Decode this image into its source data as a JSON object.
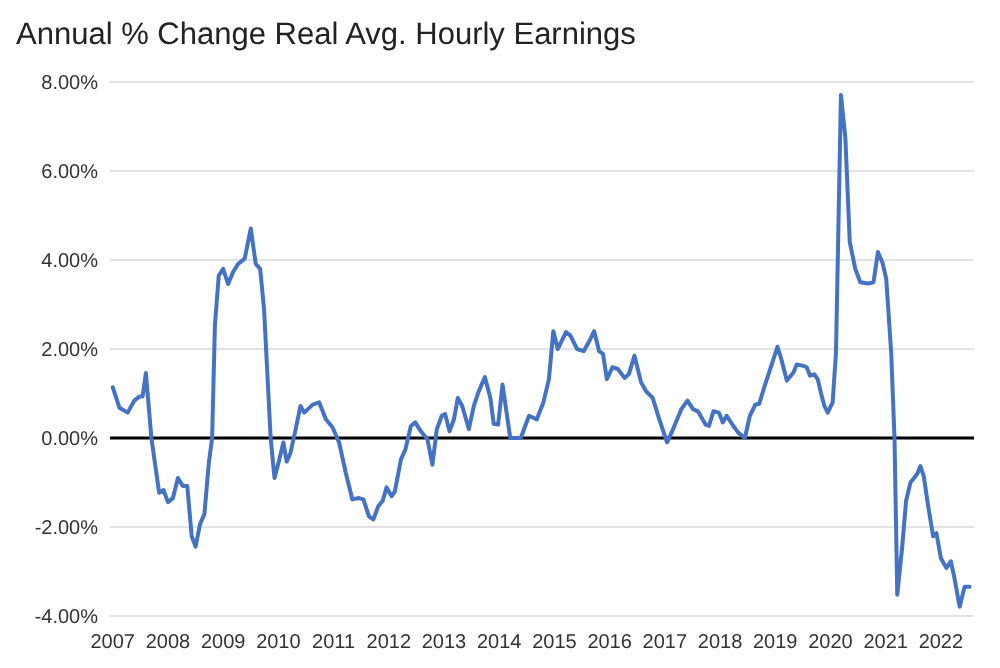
{
  "chart_data": {
    "type": "line",
    "title": "Annual % Change Real Avg. Hourly Earnings",
    "x": [
      2007.0,
      2007.12,
      2007.27,
      2007.39,
      2007.48,
      2007.54,
      2007.6,
      2007.7,
      2007.84,
      2007.92,
      2008.0,
      2008.09,
      2008.18,
      2008.27,
      2008.35,
      2008.43,
      2008.5,
      2008.58,
      2008.66,
      2008.74,
      2008.8,
      2008.85,
      2008.92,
      2009.0,
      2009.09,
      2009.18,
      2009.27,
      2009.39,
      2009.5,
      2009.59,
      2009.67,
      2009.74,
      2009.86,
      2009.93,
      2010.0,
      2010.09,
      2010.15,
      2010.22,
      2010.3,
      2010.4,
      2010.47,
      2010.62,
      2010.74,
      2010.86,
      2010.98,
      2011.1,
      2011.22,
      2011.34,
      2011.46,
      2011.54,
      2011.64,
      2011.72,
      2011.81,
      2011.89,
      2011.96,
      2012.05,
      2012.11,
      2012.22,
      2012.3,
      2012.4,
      2012.48,
      2012.58,
      2012.7,
      2012.79,
      2012.87,
      2012.96,
      2013.02,
      2013.1,
      2013.18,
      2013.25,
      2013.33,
      2013.45,
      2013.54,
      2013.62,
      2013.74,
      2013.84,
      2013.9,
      2013.98,
      2014.06,
      2014.2,
      2014.39,
      2014.54,
      2014.68,
      2014.8,
      2014.9,
      2014.98,
      2015.06,
      2015.21,
      2015.29,
      2015.41,
      2015.53,
      2015.62,
      2015.72,
      2015.81,
      2015.88,
      2015.95,
      2016.05,
      2016.15,
      2016.27,
      2016.35,
      2016.45,
      2016.57,
      2016.66,
      2016.78,
      2016.9,
      2017.04,
      2017.15,
      2017.3,
      2017.41,
      2017.51,
      2017.6,
      2017.74,
      2017.8,
      2017.88,
      2017.98,
      2018.05,
      2018.12,
      2018.24,
      2018.33,
      2018.45,
      2018.54,
      2018.64,
      2018.71,
      2018.8,
      2018.92,
      2019.04,
      2019.11,
      2019.21,
      2019.33,
      2019.39,
      2019.51,
      2019.57,
      2019.63,
      2019.71,
      2019.77,
      2019.83,
      2019.89,
      2019.95,
      2020.04,
      2020.1,
      2020.19,
      2020.27,
      2020.35,
      2020.45,
      2020.54,
      2020.68,
      2020.78,
      2020.86,
      2020.94,
      2021.01,
      2021.1,
      2021.16,
      2021.21,
      2021.3,
      2021.37,
      2021.45,
      2021.57,
      2021.63,
      2021.69,
      2021.77,
      2021.86,
      2021.92,
      2022.0,
      2022.1,
      2022.18,
      2022.24,
      2022.34,
      2022.43,
      2022.52
    ],
    "series": [
      {
        "color": "#4472c4",
        "values": [
          1.14,
          0.68,
          0.57,
          0.84,
          0.93,
          0.93,
          1.46,
          0,
          -1.23,
          -1.17,
          -1.44,
          -1.35,
          -0.9,
          -1.08,
          -1.08,
          -2.21,
          -2.44,
          -1.94,
          -1.71,
          -0.56,
          0,
          2.53,
          3.65,
          3.8,
          3.46,
          3.73,
          3.91,
          4.03,
          4.71,
          3.91,
          3.8,
          2.9,
          0,
          -0.9,
          -0.57,
          -0.1,
          -0.53,
          -0.33,
          0.12,
          0.72,
          0.57,
          0.75,
          0.8,
          0.42,
          0.24,
          -0.1,
          -0.78,
          -1.38,
          -1.35,
          -1.38,
          -1.76,
          -1.83,
          -1.53,
          -1.41,
          -1.11,
          -1.31,
          -1.2,
          -0.48,
          -0.26,
          0.27,
          0.35,
          0.15,
          -0.03,
          -0.6,
          0.2,
          0.5,
          0.54,
          0.15,
          0.42,
          0.9,
          0.72,
          0.2,
          0.72,
          1.02,
          1.37,
          0.9,
          0.32,
          0.3,
          1.2,
          0,
          0,
          0.5,
          0.42,
          0.8,
          1.32,
          2.4,
          2.0,
          2.38,
          2.3,
          2.0,
          1.95,
          2.15,
          2.4,
          1.95,
          1.89,
          1.32,
          1.59,
          1.55,
          1.35,
          1.44,
          1.85,
          1.25,
          1.05,
          0.9,
          0.42,
          -0.1,
          0.2,
          0.65,
          0.84,
          0.65,
          0.6,
          0.3,
          0.27,
          0.6,
          0.57,
          0.35,
          0.5,
          0.27,
          0.12,
          0,
          0.5,
          0.75,
          0.77,
          1.14,
          1.59,
          2.05,
          1.77,
          1.29,
          1.47,
          1.65,
          1.62,
          1.59,
          1.4,
          1.43,
          1.32,
          1.0,
          0.72,
          0.57,
          0.8,
          1.92,
          7.71,
          6.74,
          4.4,
          3.8,
          3.5,
          3.47,
          3.5,
          4.18,
          3.95,
          3.58,
          1.92,
          0,
          -3.52,
          -2.44,
          -1.41,
          -1.0,
          -0.81,
          -0.63,
          -0.86,
          -1.53,
          -2.21,
          -2.14,
          -2.7,
          -2.92,
          -2.77,
          -3.11,
          -3.79,
          -3.34,
          -3.34
        ]
      }
    ],
    "xlim": [
      2006.95,
      2022.6
    ],
    "xticks": [
      2007,
      2008,
      2009,
      2010,
      2011,
      2012,
      2013,
      2014,
      2015,
      2016,
      2017,
      2018,
      2019,
      2020,
      2021,
      2022
    ],
    "ylim": [
      -4,
      8
    ],
    "yticks": [
      {
        "value": -4,
        "label": "-4.00%"
      },
      {
        "value": -2,
        "label": "-2.00%"
      },
      {
        "value": 0,
        "label": "0.00%"
      },
      {
        "value": 2,
        "label": "2.00%"
      },
      {
        "value": 4,
        "label": "4.00%"
      },
      {
        "value": 6,
        "label": "6.00%"
      },
      {
        "value": 8,
        "label": "8.00%"
      }
    ],
    "grid": "y",
    "ref_lines": [
      {
        "axis": "y",
        "value": 0,
        "color": "#000000"
      }
    ],
    "line_style": "solid",
    "marker": "none"
  }
}
